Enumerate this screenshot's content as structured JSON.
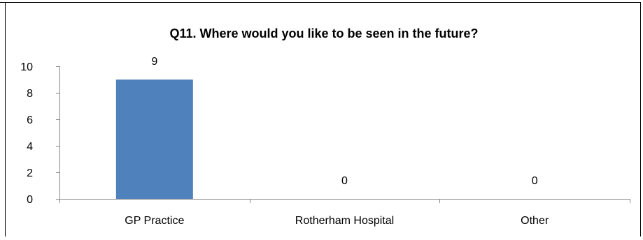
{
  "chart_data": {
    "type": "bar",
    "title": "Q11. Where would you like to be seen in the future?",
    "categories": [
      "GP Practice",
      "Rotherham Hospital",
      "Other"
    ],
    "values": [
      9,
      0,
      0
    ],
    "data_labels": [
      "9",
      "0",
      "0"
    ],
    "xlabel": "",
    "ylabel": "",
    "ylim": [
      0,
      10
    ],
    "yticks": [
      0,
      2,
      4,
      6,
      8,
      10
    ],
    "ytick_labels": [
      "0",
      "2",
      "4",
      "6",
      "8",
      "10"
    ],
    "grid": false,
    "legend": "none",
    "bar_color": "#4F81BD"
  }
}
